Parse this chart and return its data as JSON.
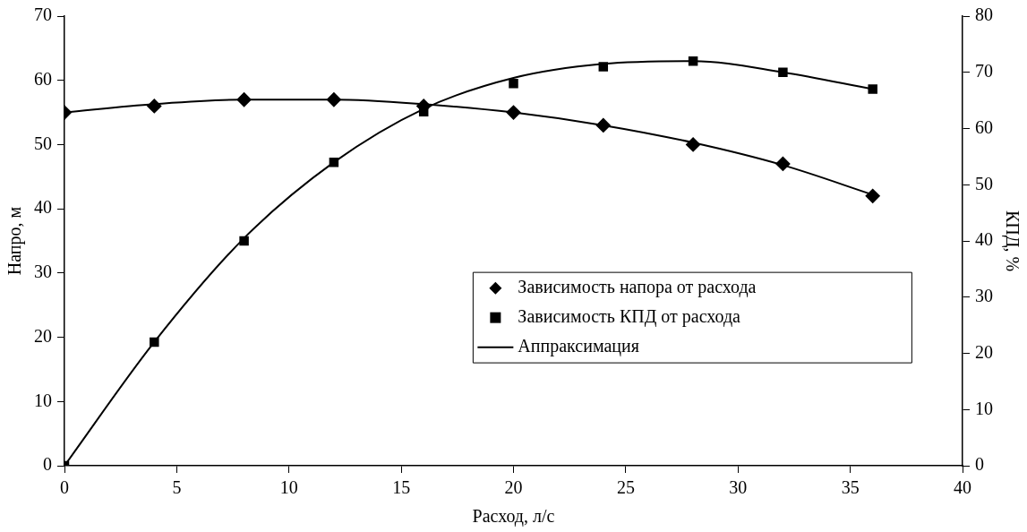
{
  "chart_data": {
    "type": "scatter",
    "xlabel": "Расход, л/с",
    "ylabel": "Напро, м",
    "y2label": "КПД, %",
    "xlim": [
      0,
      40
    ],
    "xticks": [
      0,
      5,
      10,
      15,
      20,
      25,
      30,
      35,
      40
    ],
    "ylim": [
      0,
      70
    ],
    "yticks": [
      0,
      10,
      20,
      30,
      40,
      50,
      60,
      70
    ],
    "y2lim": [
      0,
      80
    ],
    "y2ticks": [
      0,
      10,
      20,
      30,
      40,
      50,
      60,
      70,
      80
    ],
    "grid": false,
    "legend": "right",
    "series": [
      {
        "name": "Зависимость напора от расхода",
        "type": "scatter",
        "marker": "diamond",
        "color": "#000000",
        "x": [
          0,
          4,
          8,
          12,
          16,
          20,
          24,
          28,
          32,
          36
        ],
        "values": [
          55,
          56,
          57,
          57,
          56,
          55,
          53,
          50,
          47,
          42
        ]
      },
      {
        "name": "Зависимость КПД от расхода",
        "type": "scatter",
        "marker": "square",
        "axis": "y2",
        "color": "#000000",
        "x": [
          0,
          4,
          8,
          12,
          16,
          20,
          24,
          28,
          32,
          36
        ],
        "values": [
          0,
          22,
          40,
          54,
          63,
          68,
          71,
          72,
          70,
          67
        ]
      },
      {
        "name": "Аппраксимация",
        "type": "line",
        "marker": "none",
        "line_style": "solid",
        "color": "#000000",
        "x": [
          0,
          4,
          8,
          12,
          16,
          20,
          24,
          28,
          32,
          36
        ],
        "values": [
          55.0,
          56.3,
          57.0,
          57.0,
          56.3,
          55.0,
          53.0,
          50.3,
          46.8,
          42.2
        ]
      },
      {
        "type": "line",
        "marker": "none",
        "line_style": "solid",
        "axis": "y2",
        "color": "#000000",
        "x": [
          0,
          4,
          8,
          12,
          16,
          20,
          24,
          28,
          32,
          36
        ],
        "values": [
          0,
          22,
          40.5,
          54,
          63.5,
          69,
          71.5,
          72,
          70,
          67
        ]
      }
    ]
  }
}
